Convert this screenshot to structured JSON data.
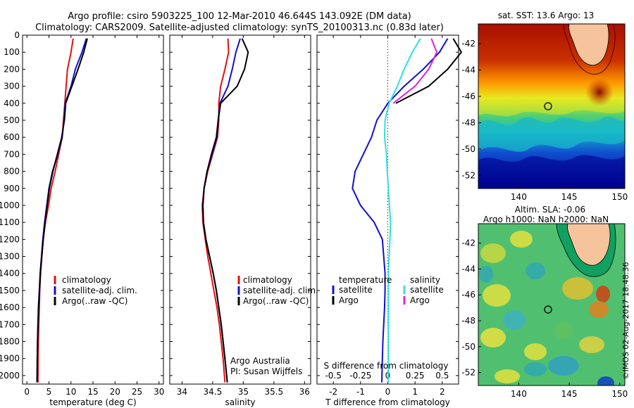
{
  "header": {
    "title_line1": "Argo profile: csiro 5903225_100 12-Mar-2010 46.644S 143.092E (DM data)",
    "title_line2": "Climatology: CARS2009. Satellite-adjusted climatology: synTS_20100313.nc (0.83d later)"
  },
  "credits": {
    "center": "Argo Australia",
    "pi": "PI: Susan Wijffels",
    "stamp": "©IMOS 02-Aug-2017 18:48:36"
  },
  "colors": {
    "climatology": "#e01010",
    "satellite_adj": "#1010d0",
    "argo": "#000000",
    "salinity_satellite": "#30e0e0",
    "salinity_argo": "#e020e0",
    "land": "#f5c49c"
  },
  "chart_data": [
    {
      "id": "temperature",
      "type": "line",
      "xlabel": "temperature (deg C)",
      "ylabel": "",
      "xlim": [
        -1,
        31
      ],
      "ylim": [
        2050,
        0
      ],
      "xticks": [
        0,
        5,
        10,
        15,
        20,
        25,
        30
      ],
      "yticks": [
        0,
        100,
        200,
        300,
        400,
        500,
        600,
        700,
        800,
        900,
        1000,
        1100,
        1200,
        1300,
        1400,
        1500,
        1600,
        1700,
        1800,
        1900,
        2000
      ],
      "legend_position": "lower-right",
      "series": [
        {
          "name": "climatology",
          "color": "#e01010",
          "x": [
            10.5,
            10.0,
            9.2,
            8.9,
            8.6,
            8.3,
            8.0,
            7.2,
            6.4,
            5.5,
            4.9,
            4.2,
            3.7,
            3.4,
            3.1,
            2.9,
            2.8,
            2.7,
            2.6,
            2.55,
            2.5
          ],
          "y": [
            20,
            100,
            200,
            300,
            400,
            500,
            600,
            700,
            800,
            900,
            1000,
            1100,
            1200,
            1300,
            1400,
            1500,
            1600,
            1700,
            1800,
            1900,
            2040
          ]
        },
        {
          "name": "satellite-adj. clim.",
          "color": "#1010d0",
          "x": [
            13.5,
            12.5,
            11.0,
            10.0,
            8.7,
            8.4,
            8.0,
            7.0,
            5.8,
            5.0,
            4.5,
            4.0,
            3.6,
            3.3,
            3.0,
            2.8,
            2.6,
            2.5,
            2.4,
            2.35,
            2.3
          ],
          "y": [
            20,
            100,
            200,
            300,
            400,
            500,
            600,
            700,
            800,
            900,
            1000,
            1100,
            1200,
            1300,
            1400,
            1500,
            1600,
            1700,
            1800,
            1900,
            2040
          ]
        },
        {
          "name": "Argo(..raw -QC)",
          "color": "#000000",
          "x": [
            13.7,
            12.9,
            11.6,
            10.2,
            8.8,
            8.5,
            7.9,
            6.9,
            5.9,
            5.1,
            4.6,
            4.1,
            3.7,
            3.35,
            3.05,
            2.85,
            2.65,
            2.5,
            2.4,
            2.35,
            2.3
          ],
          "y": [
            20,
            100,
            200,
            300,
            400,
            500,
            600,
            700,
            800,
            900,
            1000,
            1100,
            1200,
            1300,
            1400,
            1500,
            1600,
            1700,
            1800,
            1900,
            2040
          ]
        }
      ],
      "legend_entries": [
        "climatology",
        "satellite-adj. clim.",
        "Argo(..raw -QC)"
      ]
    },
    {
      "id": "salinity",
      "type": "line",
      "xlabel": "salinity",
      "ylabel": "",
      "xlim": [
        33.8,
        36.1
      ],
      "ylim": [
        2050,
        0
      ],
      "xticks": [
        34,
        34.5,
        35,
        35.5,
        36
      ],
      "legend_position": "lower-right",
      "series": [
        {
          "name": "climatology",
          "color": "#e01010",
          "x": [
            34.75,
            34.76,
            34.7,
            34.63,
            34.6,
            34.6,
            34.58,
            34.5,
            34.42,
            34.36,
            34.33,
            34.34,
            34.38,
            34.42,
            34.47,
            34.52,
            34.57,
            34.61,
            34.64,
            34.67,
            34.7
          ],
          "y": [
            20,
            100,
            200,
            300,
            400,
            500,
            600,
            700,
            800,
            900,
            1000,
            1100,
            1200,
            1300,
            1400,
            1500,
            1600,
            1700,
            1800,
            1900,
            2040
          ]
        },
        {
          "name": "satellite-adj. clim.",
          "color": "#1010d0",
          "x": [
            34.95,
            34.88,
            34.82,
            34.75,
            34.62,
            34.59,
            34.57,
            34.49,
            34.41,
            34.36,
            34.34,
            34.35,
            34.39,
            34.45,
            34.51,
            34.56,
            34.6,
            34.64,
            34.67,
            34.7,
            34.74
          ],
          "y": [
            20,
            100,
            200,
            300,
            400,
            500,
            600,
            700,
            800,
            900,
            1000,
            1100,
            1200,
            1300,
            1400,
            1500,
            1600,
            1700,
            1800,
            1900,
            2040
          ]
        },
        {
          "name": "Argo(..raw -QC)",
          "color": "#000000",
          "x": [
            34.98,
            35.08,
            35.02,
            34.9,
            34.63,
            34.59,
            34.56,
            34.48,
            34.41,
            34.36,
            34.34,
            34.35,
            34.39,
            34.45,
            34.51,
            34.56,
            34.6,
            34.64,
            34.67,
            34.7,
            34.74
          ],
          "y": [
            20,
            100,
            200,
            300,
            400,
            500,
            600,
            700,
            800,
            900,
            1000,
            1100,
            1200,
            1300,
            1400,
            1500,
            1600,
            1700,
            1800,
            1900,
            2040
          ]
        }
      ],
      "legend_entries": [
        "climatology",
        "satellite-adj. clim.",
        "Argo(..raw -QC)"
      ]
    },
    {
      "id": "differences",
      "type": "line",
      "xlabel": "T difference from climatology",
      "top_xlabel": "S difference from climatology",
      "ylabel": "",
      "xlim": [
        -2.6,
        2.6
      ],
      "ylim": [
        2050,
        0
      ],
      "xticks": [
        -2,
        -1,
        0,
        1,
        2
      ],
      "top_xtick_labels": [
        "-0.5",
        "-0.25",
        "0",
        "0.25",
        "0.5"
      ],
      "legend_groups": [
        {
          "title": "temperature",
          "items": [
            "satellite",
            "Argo"
          ]
        },
        {
          "title": "salinity",
          "items": [
            "satellite",
            "Argo"
          ]
        }
      ],
      "series": [
        {
          "name": "temperature satellite",
          "color": "#1010d0",
          "x": [
            2.2,
            1.9,
            1.3,
            0.6,
            0.0,
            -0.4,
            -0.6,
            -0.9,
            -1.2,
            -1.3,
            -1.0,
            -0.5,
            -0.2,
            -0.15,
            -0.1,
            -0.1,
            -0.12,
            -0.15,
            -0.18,
            -0.2,
            -0.22
          ],
          "y": [
            20,
            100,
            200,
            300,
            400,
            500,
            600,
            700,
            800,
            900,
            1000,
            1100,
            1200,
            1300,
            1400,
            1500,
            1600,
            1700,
            1800,
            1900,
            2040
          ]
        },
        {
          "name": "temperature Argo",
          "color": "#000000",
          "x": [
            2.4,
            2.7,
            2.2,
            1.5,
            0.3
          ],
          "y": [
            20,
            100,
            200,
            300,
            400
          ]
        },
        {
          "name": "salinity satellite",
          "color": "#30e0e0",
          "x": [
            1.2,
            0.9,
            0.6,
            0.35,
            0.05,
            -0.1,
            -0.12,
            -0.05,
            -0.02,
            0.02,
            0.06,
            0.1,
            0.08,
            0.05,
            0.02,
            0.02,
            0.02,
            0.02,
            0.02,
            0.02,
            0.02
          ],
          "y": [
            20,
            100,
            200,
            300,
            400,
            500,
            600,
            700,
            800,
            900,
            1000,
            1100,
            1200,
            1300,
            1400,
            1500,
            1600,
            1700,
            1800,
            1900,
            2040
          ]
        },
        {
          "name": "salinity Argo",
          "color": "#e020e0",
          "x": [
            1.6,
            1.8,
            1.5,
            1.0,
            0.2
          ],
          "y": [
            20,
            100,
            200,
            300,
            400
          ]
        }
      ]
    },
    {
      "id": "sst_map",
      "type": "heatmap",
      "title": "sat. SST: 13.6 Argo: 13",
      "xticks": [
        140,
        145,
        150
      ],
      "yticks": [
        -42,
        -44,
        -46,
        -48,
        -50,
        -52
      ],
      "xlim": [
        136,
        150.5
      ],
      "ylim": [
        -53,
        -40.5
      ],
      "profile_marker": {
        "lon": 143.092,
        "lat": -46.644
      }
    },
    {
      "id": "sla_map",
      "type": "heatmap",
      "title_line1": "Altim. SLA: -0.06",
      "title_line2": "Argo h1000: NaN h2000: NaN",
      "xticks": [
        140,
        145,
        150
      ],
      "yticks": [
        -42,
        -44,
        -46,
        -48,
        -50,
        -52
      ],
      "xlim": [
        136,
        150.5
      ],
      "ylim": [
        -53,
        -40.5
      ],
      "profile_marker": {
        "lon": 143.092,
        "lat": -46.644
      }
    }
  ]
}
